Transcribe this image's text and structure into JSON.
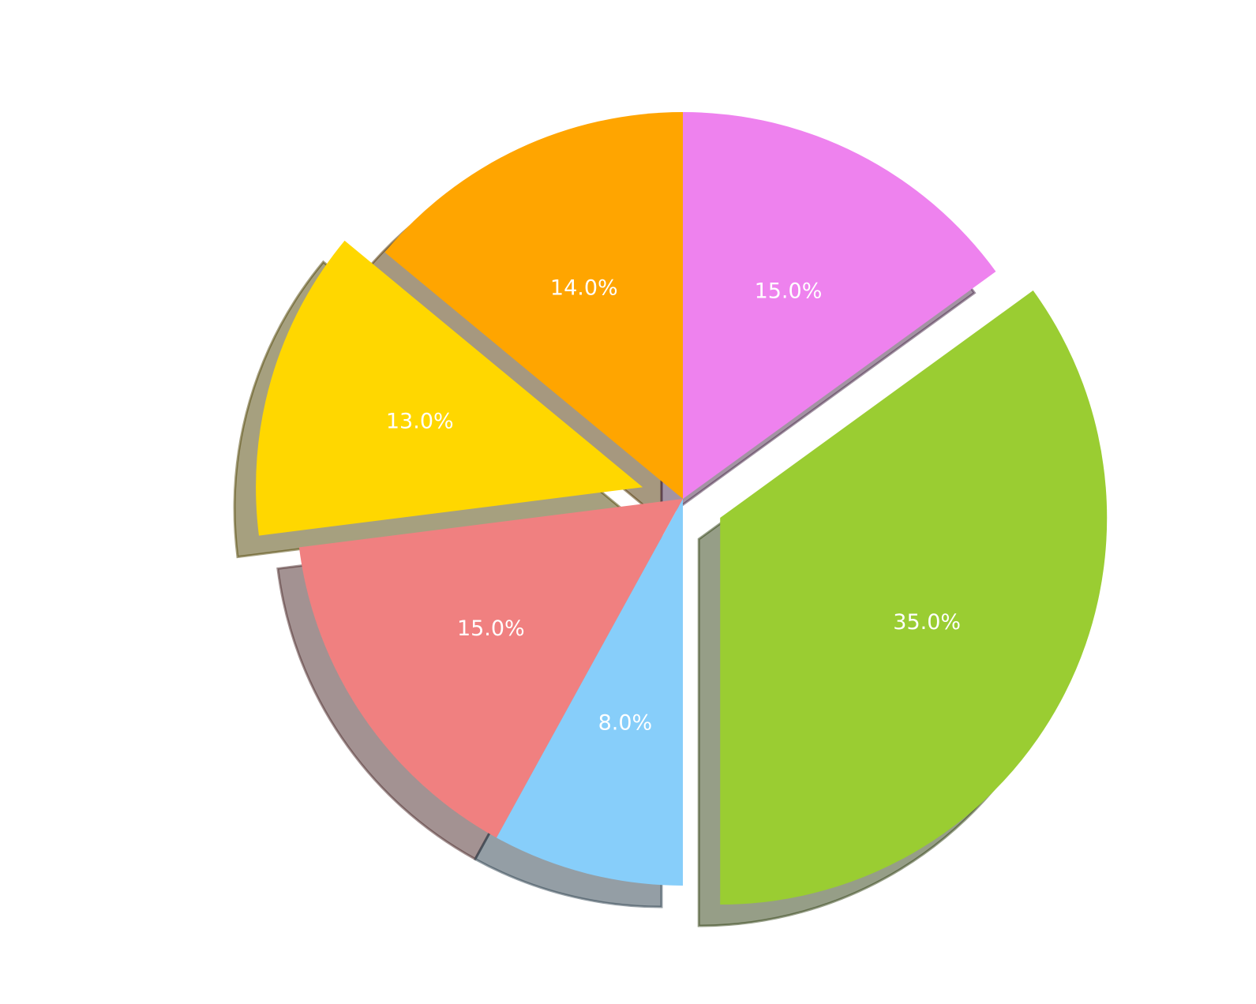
{
  "chart_data": {
    "type": "pie",
    "title": "",
    "start_angle_deg": 90,
    "direction": "counterclockwise",
    "shadow": true,
    "slices": [
      {
        "value": 14.0,
        "label": "14.0%",
        "color": "#FFA500",
        "exploded": false
      },
      {
        "value": 13.0,
        "label": "13.0%",
        "color": "#FFD700",
        "exploded": true
      },
      {
        "value": 15.0,
        "label": "15.0%",
        "color": "#F08080",
        "exploded": false
      },
      {
        "value": 8.0,
        "label": "8.0%",
        "color": "#87CEFA",
        "exploded": false
      },
      {
        "value": 35.0,
        "label": "35.0%",
        "color": "#9ACD32",
        "exploded": true
      },
      {
        "value": 15.0,
        "label": "15.0%",
        "color": "#EE82EE",
        "exploded": false
      }
    ]
  }
}
